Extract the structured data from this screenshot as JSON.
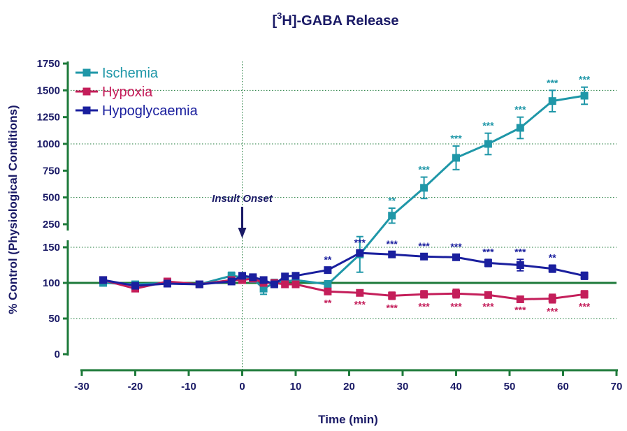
{
  "chart_data": {
    "type": "line",
    "title": {
      "prefix": "[",
      "superscript": "3",
      "suffix": "H]-GABA Release"
    },
    "xlabel": "Time (min)",
    "ylabel": "% Control (Physiological Conditions)",
    "xlim": [
      -30,
      70
    ],
    "x_ticks": [
      "-30",
      "-20",
      "-10",
      "0",
      "10",
      "20",
      "30",
      "40",
      "50",
      "60",
      "70"
    ],
    "ylim_lower": [
      0,
      150
    ],
    "ylim_upper": [
      250,
      1750
    ],
    "y_ticks_lower": [
      "0",
      "50",
      "100",
      "150"
    ],
    "y_ticks_upper": [
      "250",
      "500",
      "750",
      "1000",
      "1250",
      "1500",
      "1750"
    ],
    "grid": "dotted horizontal at 50, 150, 500, 1000, 1500; solid baseline at 100",
    "legend_position": "top-left",
    "annotation": {
      "text": "Insult Onset",
      "x": 0
    },
    "series": [
      {
        "name": "Ischemia",
        "color": "#1f97a8",
        "x": [
          -26,
          -20,
          -14,
          -8,
          -2,
          0,
          2,
          4,
          6,
          8,
          10,
          16,
          22,
          28,
          34,
          40,
          46,
          52,
          58,
          64
        ],
        "y": [
          100,
          98,
          100,
          98,
          110,
          108,
          106,
          92,
          100,
          102,
          104,
          98,
          140,
          330,
          590,
          870,
          1000,
          1150,
          1400,
          1450
        ],
        "err": [
          4,
          4,
          4,
          4,
          5,
          5,
          5,
          8,
          5,
          5,
          5,
          5,
          25,
          70,
          100,
          110,
          100,
          100,
          100,
          80
        ],
        "sig": [
          "",
          "",
          "",
          "",
          "",
          "",
          "",
          "",
          "",
          "",
          "",
          "",
          "",
          "**",
          "***",
          "***",
          "***",
          "***",
          "***",
          "***"
        ]
      },
      {
        "name": "Hypoxia",
        "color": "#c41e5a",
        "x": [
          -26,
          -20,
          -14,
          -8,
          -2,
          0,
          2,
          4,
          6,
          8,
          10,
          16,
          22,
          28,
          34,
          40,
          46,
          52,
          58,
          64
        ],
        "y": [
          104,
          92,
          102,
          98,
          104,
          104,
          106,
          100,
          100,
          98,
          98,
          88,
          86,
          82,
          84,
          85,
          83,
          77,
          78,
          84
        ],
        "err": [
          4,
          4,
          3,
          3,
          4,
          4,
          4,
          4,
          3,
          3,
          3,
          4,
          4,
          5,
          5,
          6,
          4,
          3,
          6,
          5
        ],
        "sig": [
          "",
          "",
          "",
          "",
          "",
          "",
          "",
          "",
          "",
          "",
          "",
          "**",
          "***",
          "***",
          "***",
          "***",
          "***",
          "***",
          "***",
          "***"
        ]
      },
      {
        "name": "Hypoglycaemia",
        "color": "#1a1f9e",
        "x": [
          -26,
          -20,
          -14,
          -8,
          -2,
          0,
          2,
          4,
          6,
          8,
          10,
          16,
          22,
          28,
          34,
          40,
          46,
          52,
          58,
          64
        ],
        "y": [
          104,
          96,
          99,
          98,
          102,
          110,
          108,
          104,
          98,
          109,
          110,
          118,
          142,
          140,
          137,
          136,
          128,
          125,
          120,
          110
        ],
        "err": [
          3,
          3,
          3,
          3,
          3,
          4,
          4,
          4,
          3,
          4,
          4,
          4,
          4,
          4,
          4,
          4,
          5,
          8,
          5,
          5
        ],
        "sig": [
          "",
          "",
          "",
          "",
          "",
          "",
          "",
          "",
          "",
          "",
          "",
          "**",
          "***",
          "***",
          "***",
          "***",
          "***",
          "***",
          "**",
          ""
        ]
      }
    ]
  }
}
